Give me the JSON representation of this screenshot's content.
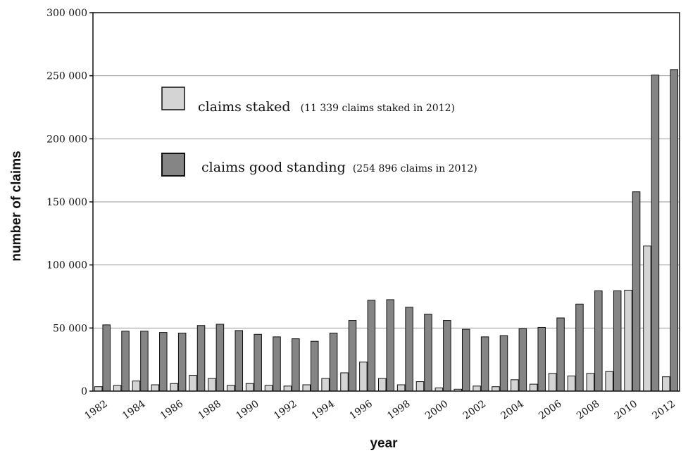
{
  "chart_data": {
    "type": "bar",
    "title": "",
    "xlabel": "year",
    "ylabel": "number of claims",
    "ylim": [
      0,
      300000
    ],
    "y_ticks": [
      "0",
      "50 000",
      "100 000",
      "150 000",
      "200 000",
      "250 000",
      "300 000"
    ],
    "y_tick_values": [
      0,
      50000,
      100000,
      150000,
      200000,
      250000,
      300000
    ],
    "x_tick_labels": [
      "1982",
      "1984",
      "1986",
      "1988",
      "1990",
      "1992",
      "1994",
      "1996",
      "1998",
      "2000",
      "2002",
      "2004",
      "2006",
      "2008",
      "2010",
      "2012"
    ],
    "grid": true,
    "legend_position": "top-left",
    "categories": [
      "1982",
      "1983",
      "1984",
      "1985",
      "1986",
      "1987",
      "1988",
      "1989",
      "1990",
      "1991",
      "1992",
      "1993",
      "1994",
      "1995",
      "1996",
      "1997",
      "1998",
      "1999",
      "2000",
      "2001",
      "2002",
      "2003",
      "2004",
      "2005",
      "2006",
      "2007",
      "2008",
      "2009",
      "2010",
      "2011",
      "2012"
    ],
    "series": [
      {
        "name": "claims staked",
        "note": "(11 339 claims staked in 2012)",
        "color": "#d4d4d4",
        "values": [
          3500,
          4500,
          8000,
          5000,
          6000,
          12500,
          10000,
          4500,
          6000,
          4500,
          4000,
          5000,
          10000,
          14500,
          23000,
          10000,
          5000,
          7500,
          2500,
          1500,
          4000,
          3500,
          9000,
          5500,
          14000,
          12000,
          14000,
          15500,
          80000,
          115000,
          11339
        ]
      },
      {
        "name": "claims good standing",
        "note": "(254 896 claims in 2012)",
        "color": "#858585",
        "values": [
          52500,
          47500,
          47500,
          46500,
          46000,
          52000,
          53000,
          48000,
          45000,
          43000,
          41500,
          39500,
          46000,
          56000,
          72000,
          72500,
          66500,
          61000,
          56000,
          49000,
          43000,
          44000,
          49500,
          50500,
          58000,
          69000,
          79500,
          79500,
          158000,
          250500,
          254896
        ]
      }
    ]
  }
}
